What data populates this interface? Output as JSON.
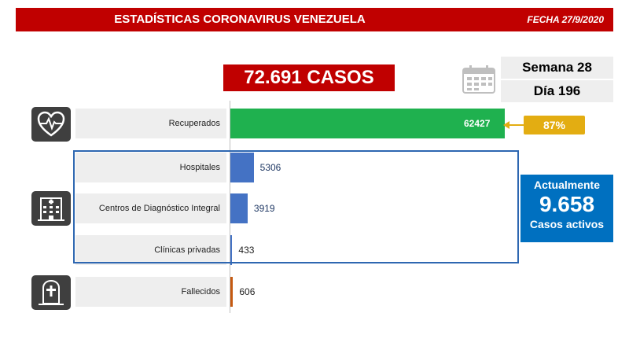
{
  "header": {
    "title": "ESTADÍSTICAS CORONAVIRUS VENEZUELA",
    "date": "FECHA 27/9/2020"
  },
  "total_cases": "72.691 CASOS",
  "week": "Semana 28",
  "day": "Día 196",
  "recovered_pct": "87%",
  "active": {
    "top": "Actualmente",
    "number": "9.658",
    "bottom": "Casos activos"
  },
  "colors": {
    "header": "#c00000",
    "recovered_bar": "#1fb14f",
    "hospital_bar": "#4472c4",
    "deceased_bar": "#c55a11",
    "pct_badge": "#e3ad12",
    "active_box": "#0070c0"
  },
  "icons": {
    "recovered": "heart-pulse-icon",
    "facilities": "hospital-icon",
    "deceased": "tombstone-icon",
    "calendar": "calendar-icon"
  },
  "chart_data": {
    "type": "bar",
    "orientation": "horizontal",
    "categories": [
      "Recuperados",
      "Hospitales",
      "Centros de Diagnóstico Integral",
      "Clínicas privadas",
      "Fallecidos"
    ],
    "values": [
      62427,
      5306,
      3919,
      433,
      606
    ],
    "value_labels": [
      "62427",
      "5306",
      "3919",
      "433",
      "606"
    ],
    "xlim": [
      0,
      62427
    ],
    "grid": false
  }
}
